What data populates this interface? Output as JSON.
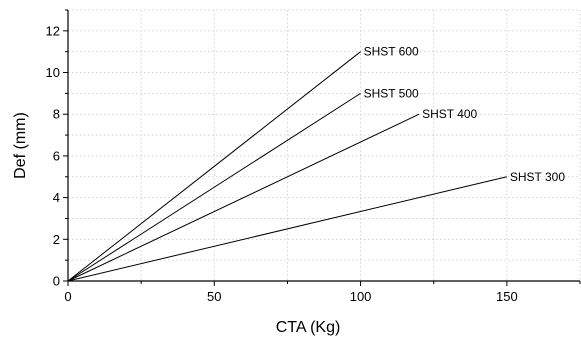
{
  "chart_data": {
    "type": "line",
    "title": "",
    "xlabel": "CTA (Kg)",
    "ylabel": "Def (mm)",
    "xlim": [
      0,
      175
    ],
    "ylim": [
      0,
      13
    ],
    "xticks": [
      0,
      50,
      100,
      150
    ],
    "yticks": [
      0,
      2,
      4,
      6,
      8,
      10,
      12
    ],
    "grid": true,
    "series": [
      {
        "name": "SHST 600",
        "x": [
          0,
          100
        ],
        "y": [
          0,
          11
        ]
      },
      {
        "name": "SHST 500",
        "x": [
          0,
          100
        ],
        "y": [
          0,
          9
        ]
      },
      {
        "name": "SHST 400",
        "x": [
          0,
          120
        ],
        "y": [
          0,
          8
        ]
      },
      {
        "name": "SHST 300",
        "x": [
          0,
          150
        ],
        "y": [
          0,
          5
        ]
      }
    ]
  }
}
